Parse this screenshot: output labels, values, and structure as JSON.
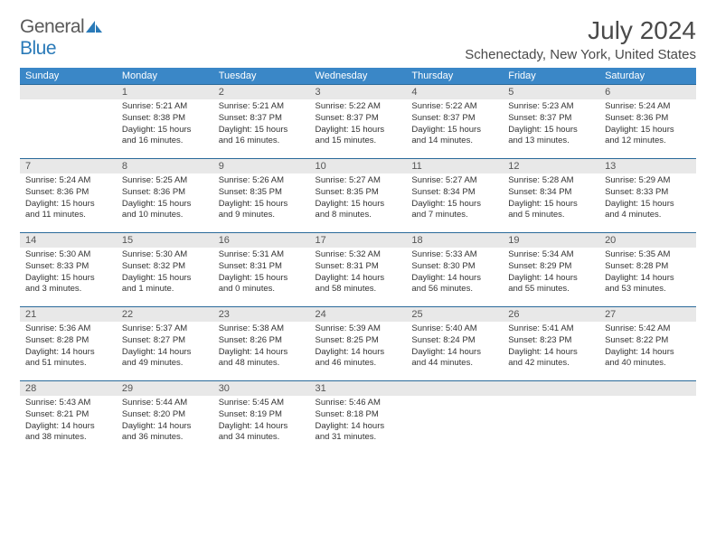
{
  "logo": {
    "text_general": "General",
    "text_blue": "Blue"
  },
  "header": {
    "month_title": "July 2024",
    "location": "Schenectady, New York, United States"
  },
  "colors": {
    "header_bg": "#3a87c7",
    "header_text": "#ffffff",
    "daynum_bg": "#e8e8e8",
    "daynum_text": "#555555",
    "body_text": "#333333",
    "rule": "#2a6a9a",
    "logo_gray": "#5a5a5a",
    "logo_blue": "#2a7ab8",
    "page_bg": "#ffffff"
  },
  "days_of_week": [
    "Sunday",
    "Monday",
    "Tuesday",
    "Wednesday",
    "Thursday",
    "Friday",
    "Saturday"
  ],
  "weeks": [
    [
      null,
      {
        "n": "1",
        "sr": "Sunrise: 5:21 AM",
        "ss": "Sunset: 8:38 PM",
        "d1": "Daylight: 15 hours",
        "d2": "and 16 minutes."
      },
      {
        "n": "2",
        "sr": "Sunrise: 5:21 AM",
        "ss": "Sunset: 8:37 PM",
        "d1": "Daylight: 15 hours",
        "d2": "and 16 minutes."
      },
      {
        "n": "3",
        "sr": "Sunrise: 5:22 AM",
        "ss": "Sunset: 8:37 PM",
        "d1": "Daylight: 15 hours",
        "d2": "and 15 minutes."
      },
      {
        "n": "4",
        "sr": "Sunrise: 5:22 AM",
        "ss": "Sunset: 8:37 PM",
        "d1": "Daylight: 15 hours",
        "d2": "and 14 minutes."
      },
      {
        "n": "5",
        "sr": "Sunrise: 5:23 AM",
        "ss": "Sunset: 8:37 PM",
        "d1": "Daylight: 15 hours",
        "d2": "and 13 minutes."
      },
      {
        "n": "6",
        "sr": "Sunrise: 5:24 AM",
        "ss": "Sunset: 8:36 PM",
        "d1": "Daylight: 15 hours",
        "d2": "and 12 minutes."
      }
    ],
    [
      {
        "n": "7",
        "sr": "Sunrise: 5:24 AM",
        "ss": "Sunset: 8:36 PM",
        "d1": "Daylight: 15 hours",
        "d2": "and 11 minutes."
      },
      {
        "n": "8",
        "sr": "Sunrise: 5:25 AM",
        "ss": "Sunset: 8:36 PM",
        "d1": "Daylight: 15 hours",
        "d2": "and 10 minutes."
      },
      {
        "n": "9",
        "sr": "Sunrise: 5:26 AM",
        "ss": "Sunset: 8:35 PM",
        "d1": "Daylight: 15 hours",
        "d2": "and 9 minutes."
      },
      {
        "n": "10",
        "sr": "Sunrise: 5:27 AM",
        "ss": "Sunset: 8:35 PM",
        "d1": "Daylight: 15 hours",
        "d2": "and 8 minutes."
      },
      {
        "n": "11",
        "sr": "Sunrise: 5:27 AM",
        "ss": "Sunset: 8:34 PM",
        "d1": "Daylight: 15 hours",
        "d2": "and 7 minutes."
      },
      {
        "n": "12",
        "sr": "Sunrise: 5:28 AM",
        "ss": "Sunset: 8:34 PM",
        "d1": "Daylight: 15 hours",
        "d2": "and 5 minutes."
      },
      {
        "n": "13",
        "sr": "Sunrise: 5:29 AM",
        "ss": "Sunset: 8:33 PM",
        "d1": "Daylight: 15 hours",
        "d2": "and 4 minutes."
      }
    ],
    [
      {
        "n": "14",
        "sr": "Sunrise: 5:30 AM",
        "ss": "Sunset: 8:33 PM",
        "d1": "Daylight: 15 hours",
        "d2": "and 3 minutes."
      },
      {
        "n": "15",
        "sr": "Sunrise: 5:30 AM",
        "ss": "Sunset: 8:32 PM",
        "d1": "Daylight: 15 hours",
        "d2": "and 1 minute."
      },
      {
        "n": "16",
        "sr": "Sunrise: 5:31 AM",
        "ss": "Sunset: 8:31 PM",
        "d1": "Daylight: 15 hours",
        "d2": "and 0 minutes."
      },
      {
        "n": "17",
        "sr": "Sunrise: 5:32 AM",
        "ss": "Sunset: 8:31 PM",
        "d1": "Daylight: 14 hours",
        "d2": "and 58 minutes."
      },
      {
        "n": "18",
        "sr": "Sunrise: 5:33 AM",
        "ss": "Sunset: 8:30 PM",
        "d1": "Daylight: 14 hours",
        "d2": "and 56 minutes."
      },
      {
        "n": "19",
        "sr": "Sunrise: 5:34 AM",
        "ss": "Sunset: 8:29 PM",
        "d1": "Daylight: 14 hours",
        "d2": "and 55 minutes."
      },
      {
        "n": "20",
        "sr": "Sunrise: 5:35 AM",
        "ss": "Sunset: 8:28 PM",
        "d1": "Daylight: 14 hours",
        "d2": "and 53 minutes."
      }
    ],
    [
      {
        "n": "21",
        "sr": "Sunrise: 5:36 AM",
        "ss": "Sunset: 8:28 PM",
        "d1": "Daylight: 14 hours",
        "d2": "and 51 minutes."
      },
      {
        "n": "22",
        "sr": "Sunrise: 5:37 AM",
        "ss": "Sunset: 8:27 PM",
        "d1": "Daylight: 14 hours",
        "d2": "and 49 minutes."
      },
      {
        "n": "23",
        "sr": "Sunrise: 5:38 AM",
        "ss": "Sunset: 8:26 PM",
        "d1": "Daylight: 14 hours",
        "d2": "and 48 minutes."
      },
      {
        "n": "24",
        "sr": "Sunrise: 5:39 AM",
        "ss": "Sunset: 8:25 PM",
        "d1": "Daylight: 14 hours",
        "d2": "and 46 minutes."
      },
      {
        "n": "25",
        "sr": "Sunrise: 5:40 AM",
        "ss": "Sunset: 8:24 PM",
        "d1": "Daylight: 14 hours",
        "d2": "and 44 minutes."
      },
      {
        "n": "26",
        "sr": "Sunrise: 5:41 AM",
        "ss": "Sunset: 8:23 PM",
        "d1": "Daylight: 14 hours",
        "d2": "and 42 minutes."
      },
      {
        "n": "27",
        "sr": "Sunrise: 5:42 AM",
        "ss": "Sunset: 8:22 PM",
        "d1": "Daylight: 14 hours",
        "d2": "and 40 minutes."
      }
    ],
    [
      {
        "n": "28",
        "sr": "Sunrise: 5:43 AM",
        "ss": "Sunset: 8:21 PM",
        "d1": "Daylight: 14 hours",
        "d2": "and 38 minutes."
      },
      {
        "n": "29",
        "sr": "Sunrise: 5:44 AM",
        "ss": "Sunset: 8:20 PM",
        "d1": "Daylight: 14 hours",
        "d2": "and 36 minutes."
      },
      {
        "n": "30",
        "sr": "Sunrise: 5:45 AM",
        "ss": "Sunset: 8:19 PM",
        "d1": "Daylight: 14 hours",
        "d2": "and 34 minutes."
      },
      {
        "n": "31",
        "sr": "Sunrise: 5:46 AM",
        "ss": "Sunset: 8:18 PM",
        "d1": "Daylight: 14 hours",
        "d2": "and 31 minutes."
      },
      null,
      null,
      null
    ]
  ]
}
